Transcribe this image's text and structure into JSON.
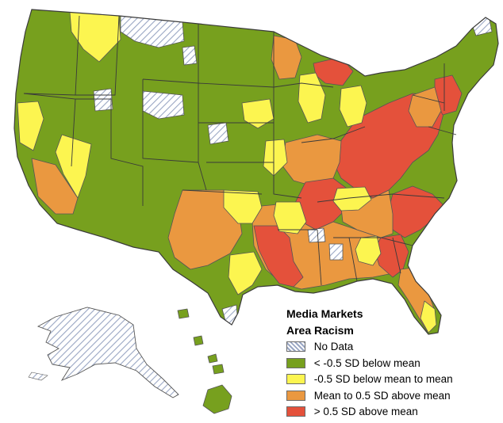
{
  "legend": {
    "title_line1": "Media Markets",
    "title_line2": "Area Racism",
    "categories": [
      {
        "label": "No Data",
        "color": "#ffffff",
        "pattern": "hatch"
      },
      {
        "label": "< -0.5 SD below mean",
        "color": "#77a01e",
        "pattern": "solid"
      },
      {
        "label": "-0.5 SD below mean to mean",
        "color": "#fcf550",
        "pattern": "solid"
      },
      {
        "label": "Mean to 0.5 SD above mean",
        "color": "#ea9840",
        "pattern": "solid"
      },
      {
        "label": "> 0.5 SD above mean",
        "color": "#e4513b",
        "pattern": "solid"
      }
    ]
  },
  "colors": {
    "hatch_line": "#9aa7c4",
    "border": "#555555"
  }
}
